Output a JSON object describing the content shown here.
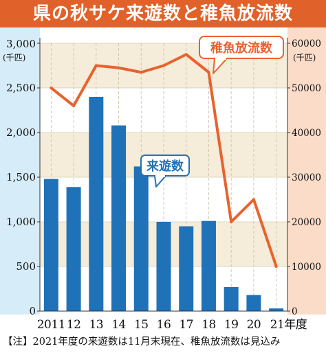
{
  "title": "県の秋サケ来遊数と稚魚放流数",
  "footnote": "【注】2021年度の来遊数は11月末現在、稚魚放流数は見込み",
  "colors": {
    "title_bg": "#e0622a",
    "bar": "#1f72b8",
    "line": "#e8622e",
    "left_panel": "#d6ecf8",
    "right_panel": "#fadcc8",
    "band": "#f5ecd9"
  },
  "chart_data": {
    "type": "bar",
    "categories": [
      "2011",
      "12",
      "13",
      "14",
      "15",
      "16",
      "17",
      "18",
      "19",
      "20",
      "21年度"
    ],
    "series": [
      {
        "name": "来遊数",
        "type": "bar",
        "axis": "left",
        "values": [
          1480,
          1390,
          2400,
          2080,
          1620,
          1000,
          950,
          1010,
          270,
          180,
          30
        ]
      },
      {
        "name": "稚魚放流数",
        "type": "line",
        "axis": "right",
        "values": [
          50000,
          46000,
          55000,
          54500,
          53500,
          55000,
          57500,
          53500,
          20000,
          25000,
          10000
        ]
      }
    ],
    "y_left": {
      "unit": "(千匹)",
      "lim": [
        0,
        3000
      ],
      "ticks": [
        0,
        500,
        1000,
        1500,
        2000,
        2500,
        3000
      ],
      "tick_labels": [
        "0",
        "500",
        "1,000",
        "1,500",
        "2,000",
        "2,500",
        "3,000"
      ]
    },
    "y_right": {
      "unit": "(千匹)",
      "lim": [
        0,
        60000
      ],
      "ticks": [
        0,
        10000,
        20000,
        30000,
        40000,
        50000,
        60000
      ],
      "tick_labels": [
        "0",
        "10000",
        "20000",
        "30000",
        "40000",
        "50000",
        "60000"
      ]
    },
    "grid": "horizontal bands and dashed vertical lines",
    "legend": "callout labels"
  }
}
